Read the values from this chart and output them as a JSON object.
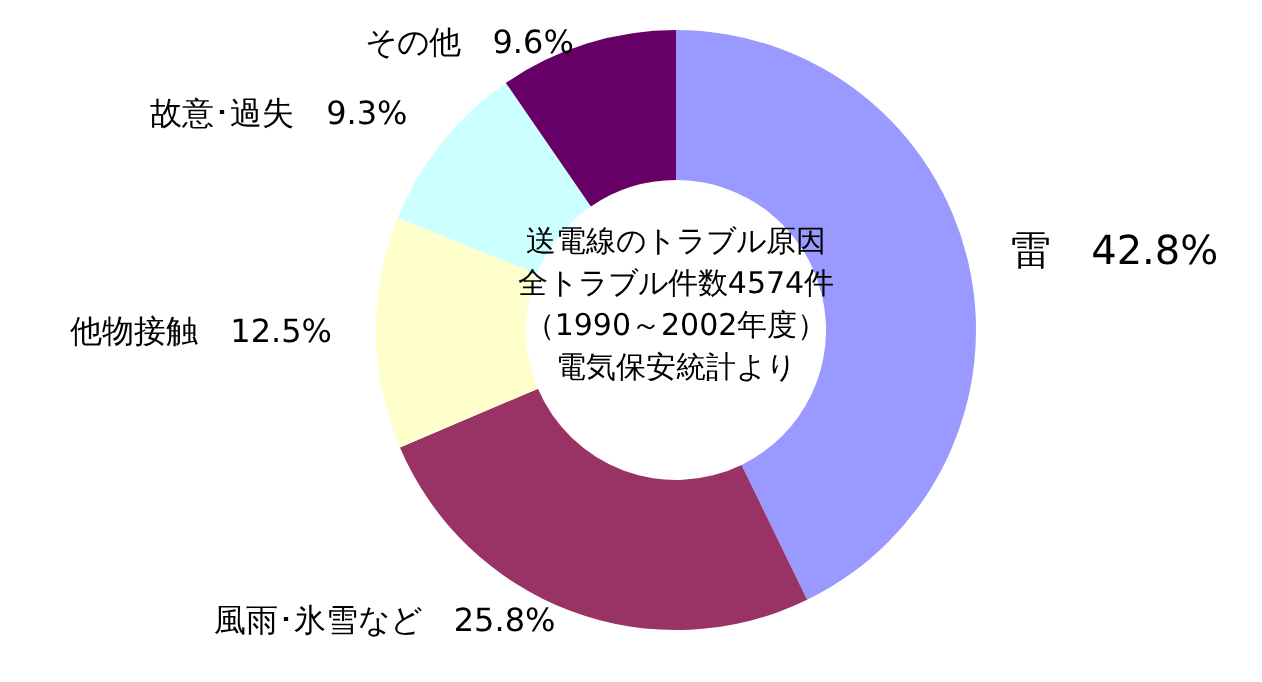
{
  "chart_data": {
    "type": "donut",
    "title": "送電線のトラブル原因",
    "subtitle": "全トラブル件数4574件",
    "annotations": [
      "（1990～2002年度）",
      "電気保安統計より"
    ],
    "categories": [
      "雷",
      "風雨･氷雪など",
      "他物接触",
      "故意･過失",
      "その他"
    ],
    "values": [
      42.8,
      25.8,
      12.5,
      9.3,
      9.6
    ],
    "value_labels": [
      "42.8%",
      "25.8%",
      "12.5%",
      "9.3%",
      "9.6%"
    ],
    "colors": [
      "#9999ff",
      "#993366",
      "#ffffcc",
      "#ccffff",
      "#660066"
    ],
    "legend": false
  }
}
